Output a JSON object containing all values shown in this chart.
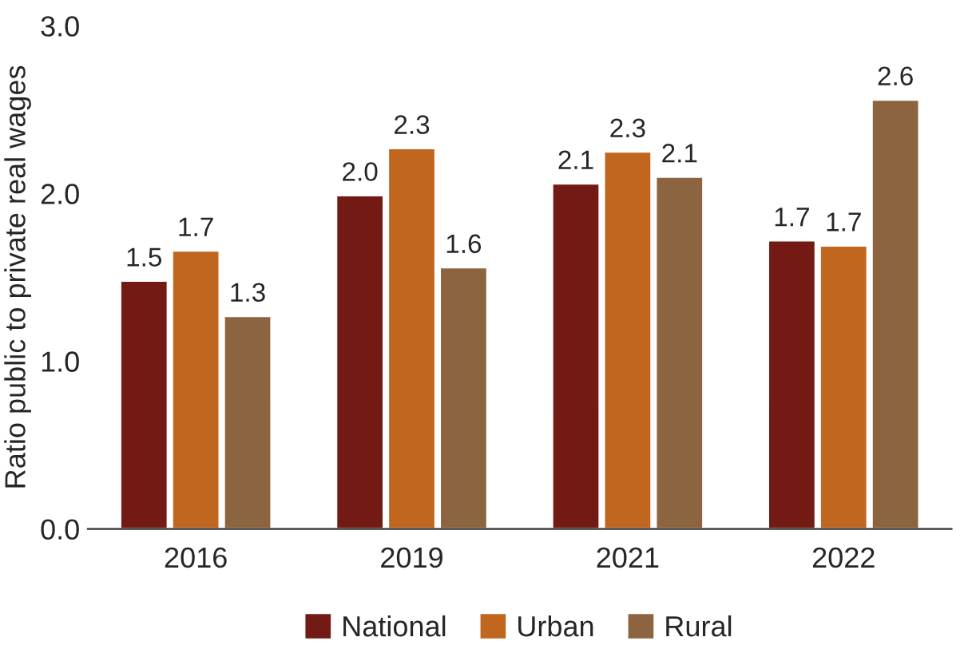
{
  "chart_data": {
    "type": "bar",
    "ylabel": "Ratio public to private real wages",
    "categories": [
      "2016",
      "2019",
      "2021",
      "2022"
    ],
    "series": [
      {
        "name": "National",
        "color": "#731a14",
        "values": [
          1.48,
          1.99,
          2.06,
          1.72
        ],
        "value_labels": [
          "1.5",
          "2.0",
          "2.1",
          "1.7"
        ]
      },
      {
        "name": "Urban",
        "color": "#c0661e",
        "values": [
          1.66,
          2.27,
          2.25,
          1.69
        ],
        "value_labels": [
          "1.7",
          "2.3",
          "2.3",
          "1.7"
        ]
      },
      {
        "name": "Rural",
        "color": "#8c6440",
        "values": [
          1.27,
          1.56,
          2.1,
          2.56
        ],
        "value_labels": [
          "1.3",
          "1.6",
          "2.1",
          "2.6"
        ]
      }
    ],
    "ylim": [
      0,
      3.0
    ],
    "yticks": [
      {
        "value": 0,
        "label": "0.0"
      },
      {
        "value": 1,
        "label": "1.0"
      },
      {
        "value": 2,
        "label": "2.0"
      },
      {
        "value": 3,
        "label": "3.0"
      }
    ],
    "grid": false,
    "legend": "bottom"
  }
}
